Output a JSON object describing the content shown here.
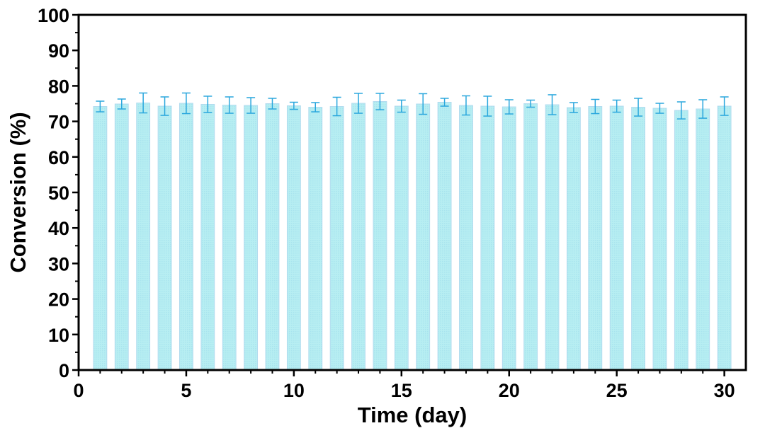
{
  "chart_data": {
    "type": "bar",
    "title": "",
    "xlabel": "Time (day)",
    "ylabel": "Conversion (%)",
    "xlim": [
      0,
      31
    ],
    "ylim": [
      0,
      100
    ],
    "x_ticks": [
      "0",
      "5",
      "10",
      "15",
      "20",
      "25",
      "30"
    ],
    "y_ticks": [
      "0",
      "10",
      "20",
      "30",
      "40",
      "50",
      "60",
      "70",
      "80",
      "90",
      "100"
    ],
    "grid": false,
    "legend": "none",
    "bar_color": "#b7eef2",
    "bar_edge_color": "#b2dbef",
    "error_color": "#2aa7dd",
    "x": [
      1,
      2,
      3,
      4,
      5,
      6,
      7,
      8,
      9,
      10,
      11,
      12,
      13,
      14,
      15,
      16,
      17,
      18,
      19,
      20,
      21,
      22,
      23,
      24,
      25,
      26,
      27,
      28,
      29,
      30
    ],
    "values": [
      74.2,
      74.9,
      75.2,
      74.3,
      75.1,
      74.8,
      74.6,
      74.5,
      75.0,
      74.4,
      74.0,
      74.2,
      75.1,
      75.6,
      74.3,
      74.9,
      75.4,
      74.5,
      74.3,
      74.1,
      75.0,
      74.7,
      73.9,
      74.2,
      74.3,
      74.0,
      73.7,
      73.1,
      73.5,
      74.3
    ],
    "errors": [
      1.5,
      1.4,
      2.8,
      2.6,
      2.9,
      2.3,
      2.3,
      2.2,
      1.5,
      1.0,
      1.3,
      2.6,
      2.8,
      2.3,
      1.7,
      2.9,
      1.1,
      2.7,
      2.8,
      2.0,
      1.0,
      2.8,
      1.4,
      2.0,
      1.7,
      2.5,
      1.4,
      2.4,
      2.6,
      2.6
    ]
  }
}
